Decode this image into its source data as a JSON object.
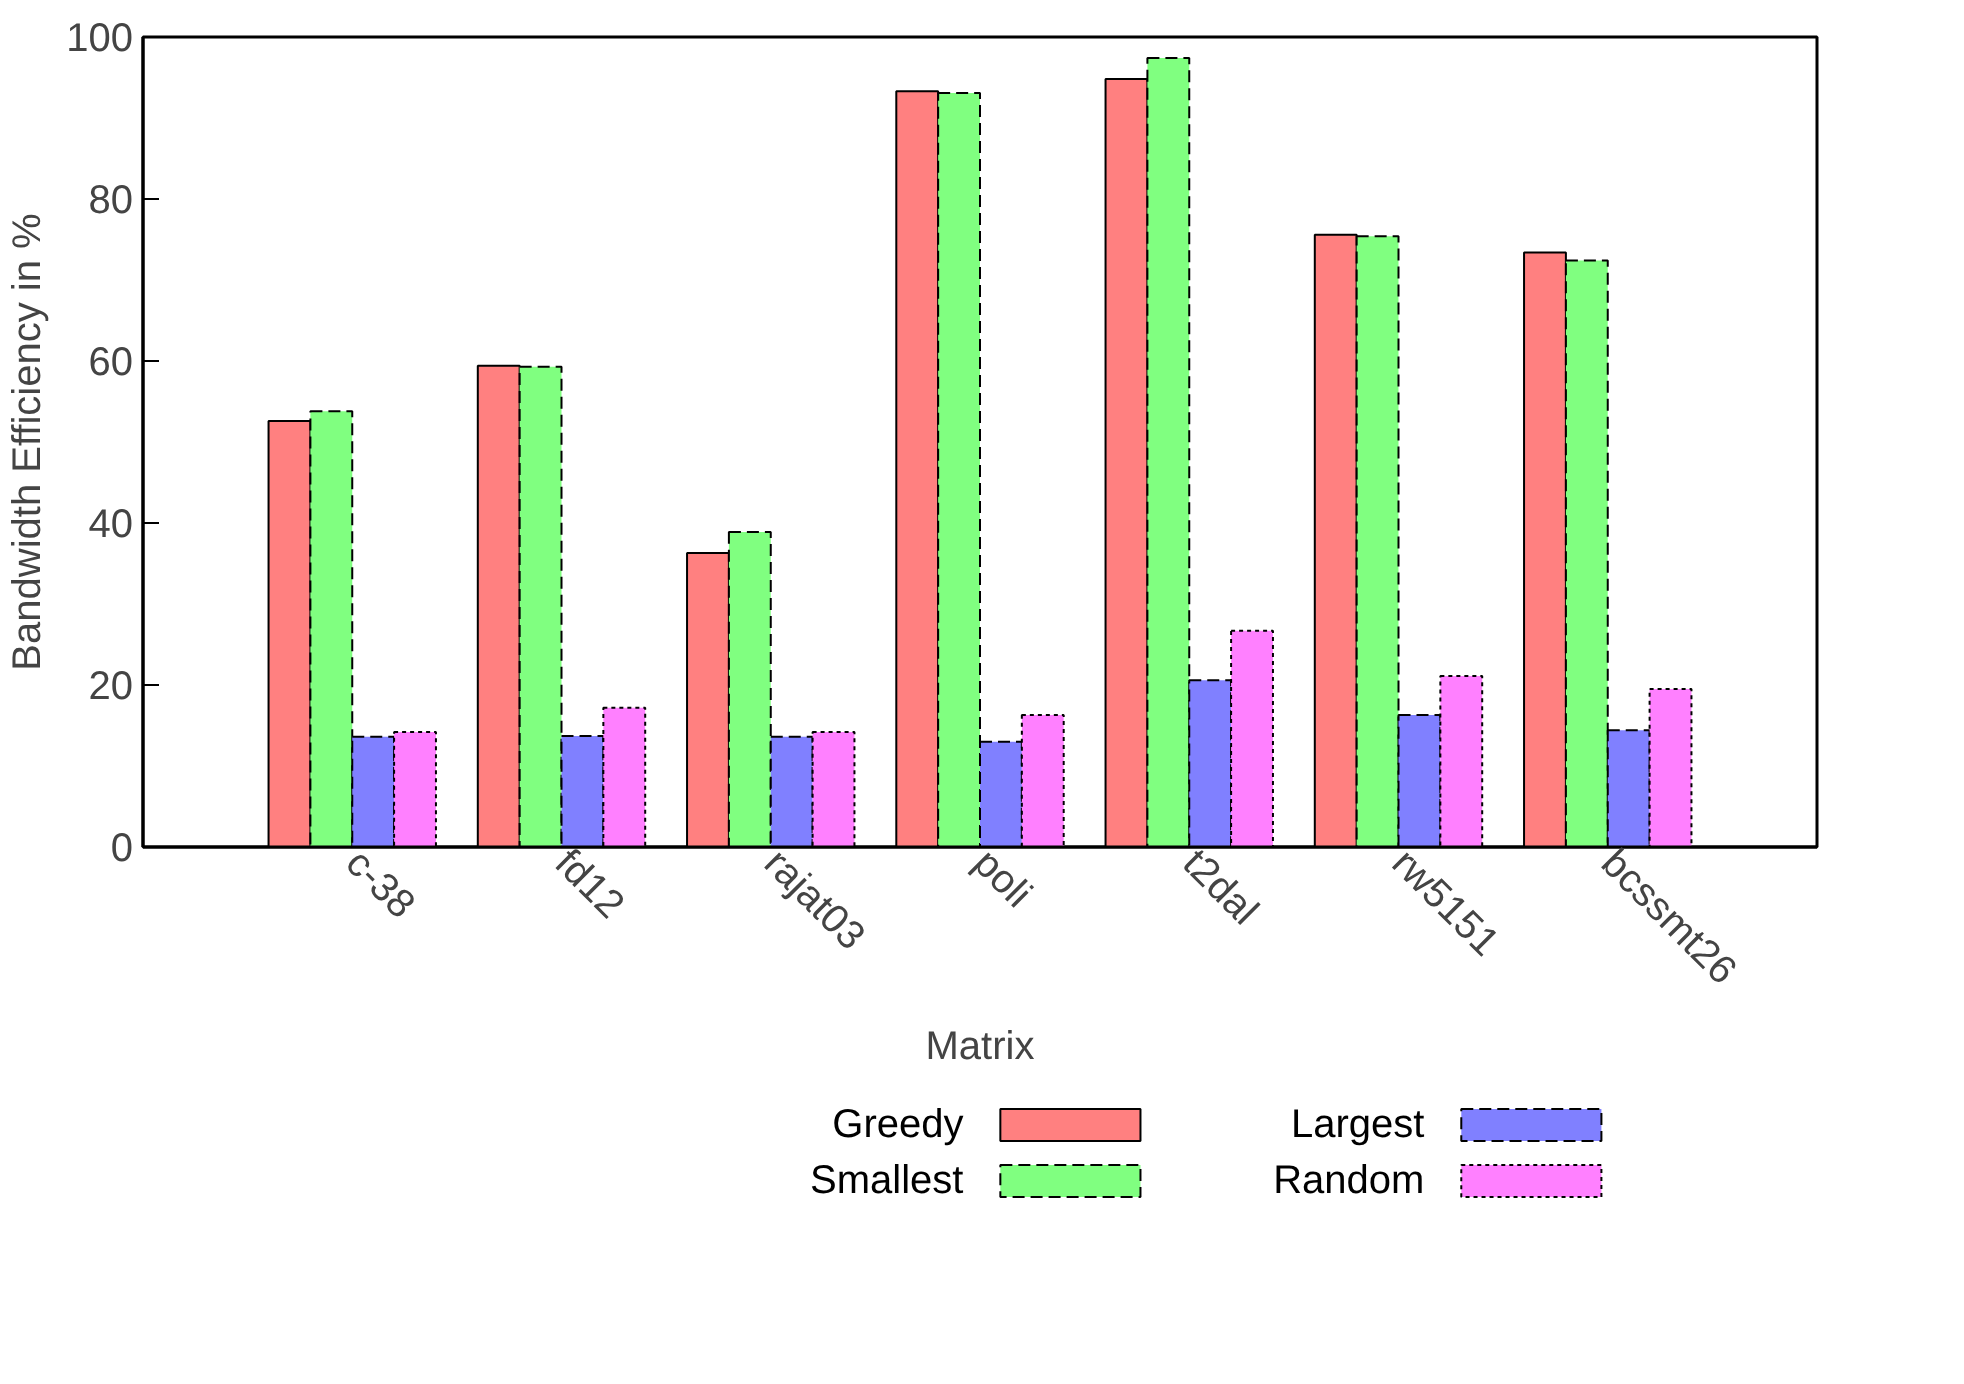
{
  "chart_data": {
    "type": "bar",
    "xlabel": "Matrix",
    "ylabel": "Bandwidth Efficiency in %",
    "categories": [
      "c-38",
      "fd12",
      "rajat03",
      "poli",
      "t2dal",
      "rw5151",
      "bcssmt26"
    ],
    "series": [
      {
        "name": "Greedy",
        "color": "#ff8080",
        "line_style": "solid",
        "values": [
          52.6,
          59.4,
          36.3,
          93.3,
          94.8,
          75.6,
          73.4
        ]
      },
      {
        "name": "Smallest",
        "color": "#80ff80",
        "line_style": "dashed",
        "values": [
          53.8,
          59.3,
          38.9,
          93.1,
          97.4,
          75.4,
          72.4
        ]
      },
      {
        "name": "Largest",
        "color": "#8080ff",
        "line_style": "dashed",
        "values": [
          13.6,
          13.7,
          13.6,
          13.0,
          20.6,
          16.3,
          14.4
        ]
      },
      {
        "name": "Random",
        "color": "#ff80ff",
        "line_style": "dotted",
        "values": [
          14.2,
          17.2,
          14.2,
          16.3,
          26.7,
          21.1,
          19.5
        ]
      }
    ],
    "ylim": [
      0,
      100
    ],
    "yticks": [
      0,
      20,
      40,
      60,
      80,
      100
    ],
    "grid": false,
    "legend": "bottom"
  }
}
